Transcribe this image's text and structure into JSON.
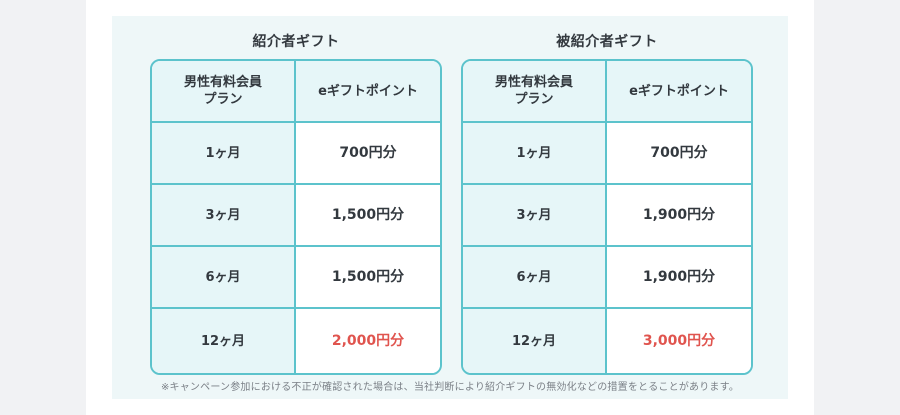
{
  "colors": {
    "accent_border": "#5cc3cc",
    "header_bg": "#e6f6f8",
    "highlight_text": "#e0544e",
    "panel_bg": "#eef7f8"
  },
  "referrer": {
    "title": "紹介者ギフト",
    "header": {
      "plan": "男性有料会員\nプラン",
      "points": "eギフトポイント"
    },
    "rows": [
      {
        "plan": "1ヶ月",
        "points": "700円分"
      },
      {
        "plan": "3ヶ月",
        "points": "1,500円分"
      },
      {
        "plan": "6ヶ月",
        "points": "1,500円分"
      },
      {
        "plan": "12ヶ月",
        "points": "2,000円分"
      }
    ]
  },
  "referee": {
    "title": "被紹介者ギフト",
    "header": {
      "plan": "男性有料会員\nプラン",
      "points": "eギフトポイント"
    },
    "rows": [
      {
        "plan": "1ヶ月",
        "points": "700円分"
      },
      {
        "plan": "3ヶ月",
        "points": "1,900円分"
      },
      {
        "plan": "6ヶ月",
        "points": "1,900円分"
      },
      {
        "plan": "12ヶ月",
        "points": "3,000円分"
      }
    ]
  },
  "note": "※キャンペーン参加における不正が確認された場合は、当社判断により紹介ギフトの無効化などの措置をとることがあります。"
}
